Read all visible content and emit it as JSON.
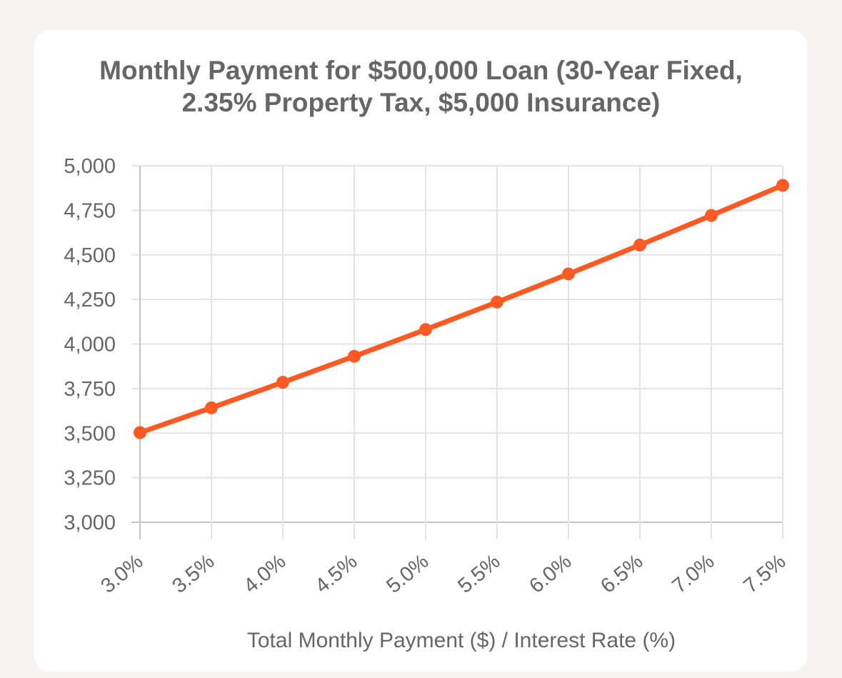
{
  "chart_data": {
    "type": "line",
    "title": "Monthly Payment for $500,000 Loan (30-Year Fixed,\n2.35% Property Tax, $5,000 Insurance)",
    "xlabel": "Total Monthly Payment ($) / Interest Rate (%)",
    "ylabel": "",
    "categories": [
      "3.0%",
      "3.5%",
      "4.0%",
      "4.5%",
      "5.0%",
      "5.5%",
      "6.0%",
      "6.5%",
      "7.0%",
      "7.5%"
    ],
    "y_ticks": [
      "3,000",
      "3,250",
      "3,500",
      "3,750",
      "4,000",
      "4,250",
      "4,500",
      "4,750",
      "5,000"
    ],
    "ylim": [
      3000,
      5000
    ],
    "grid": true,
    "legend": "none",
    "series": [
      {
        "color": "#fc5a24",
        "values": [
          3503,
          3642,
          3785,
          3931,
          4081,
          4235,
          4393,
          4555,
          4721,
          4890
        ]
      }
    ]
  }
}
